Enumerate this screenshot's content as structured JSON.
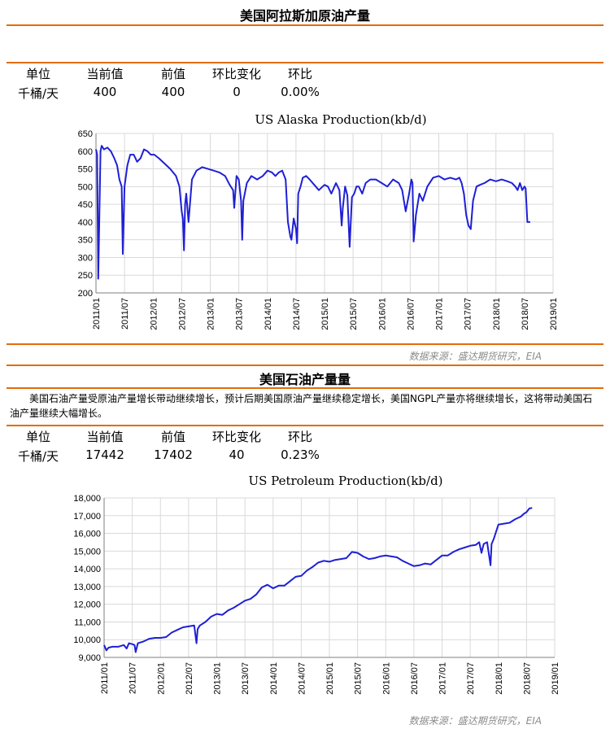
{
  "section1": {
    "title": "美国阿拉斯加原油产量",
    "stats_headers": [
      "单位",
      "当前值",
      "前值",
      "环比变化",
      "环比"
    ],
    "stats_values": [
      "千桶/天",
      "400",
      "400",
      "0",
      "0.00%"
    ],
    "source": "数据来源：盛达期货研究，EIA"
  },
  "section2": {
    "title": "美国石油产量量",
    "description": "美国石油产量受原油产量增长带动继续增长，预计后期美国原油产量继续稳定增长，美国NGPL产量亦将继续增长，这将带动美国石油产量继续大幅增长。",
    "stats_headers": [
      "单位",
      "当前值",
      "前值",
      "环比变化",
      "环比"
    ],
    "stats_values": [
      "千桶/天",
      "17442",
      "17402",
      "40",
      "0.23%"
    ],
    "source": "数据来源：盛达期货研究，EIA"
  },
  "chart_data": [
    {
      "type": "line",
      "title": "US Alaska Production(kb/d)",
      "color": "#1f1fd6",
      "x_ticks": [
        "2011/01",
        "2011/07",
        "2012/01",
        "2012/07",
        "2013/01",
        "2013/07",
        "2014/01",
        "2014/07",
        "2015/01",
        "2015/07",
        "2016/01",
        "2016/07",
        "2017/01",
        "2017/07",
        "2018/01",
        "2018/07",
        "2019/01"
      ],
      "y_ticks": [
        "200",
        "250",
        "300",
        "350",
        "400",
        "450",
        "500",
        "550",
        "600",
        "650"
      ],
      "ylim": [
        200,
        650
      ],
      "xlim": [
        2011.0,
        2019.0
      ],
      "grid": true,
      "series": [
        {
          "x": [
            2011.0,
            2011.02,
            2011.04,
            2011.06,
            2011.08,
            2011.1,
            2011.14,
            2011.2,
            2011.26,
            2011.32,
            2011.37,
            2011.41,
            2011.45,
            2011.47,
            2011.5,
            2011.55,
            2011.6,
            2011.66,
            2011.72,
            2011.78,
            2011.84,
            2011.9,
            2011.96,
            2012.02,
            2012.1,
            2012.2,
            2012.3,
            2012.4,
            2012.46,
            2012.5,
            2012.52,
            2012.54,
            2012.56,
            2012.58,
            2012.62,
            2012.68,
            2012.76,
            2012.86,
            2012.96,
            2013.06,
            2013.16,
            2013.26,
            2013.34,
            2013.4,
            2013.42,
            2013.46,
            2013.5,
            2013.54,
            2013.56,
            2013.58,
            2013.64,
            2013.72,
            2013.82,
            2013.92,
            2014.0,
            2014.08,
            2014.14,
            2014.2,
            2014.26,
            2014.32,
            2014.36,
            2014.4,
            2014.42,
            2014.46,
            2014.5,
            2014.52,
            2014.54,
            2014.58,
            2014.62,
            2014.68,
            2014.74,
            2014.82,
            2014.9,
            2015.0,
            2015.06,
            2015.12,
            2015.2,
            2015.26,
            2015.3,
            2015.32,
            2015.36,
            2015.4,
            2015.44,
            2015.48,
            2015.52,
            2015.56,
            2015.6,
            2015.66,
            2015.72,
            2015.8,
            2015.9,
            2016.0,
            2016.1,
            2016.2,
            2016.3,
            2016.36,
            2016.38,
            2016.42,
            2016.48,
            2016.52,
            2016.54,
            2016.56,
            2016.6,
            2016.66,
            2016.72,
            2016.8,
            2016.9,
            2017.0,
            2017.1,
            2017.2,
            2017.3,
            2017.36,
            2017.4,
            2017.44,
            2017.48,
            2017.52,
            2017.56,
            2017.6,
            2017.66,
            2017.72,
            2017.8,
            2017.9,
            2018.0,
            2018.1,
            2018.2,
            2018.28,
            2018.34,
            2018.38,
            2018.42,
            2018.46,
            2018.5,
            2018.52,
            2018.55,
            2018.6
          ],
          "y": [
            605,
            590,
            240,
            420,
            600,
            615,
            605,
            610,
            600,
            580,
            560,
            520,
            500,
            310,
            500,
            560,
            590,
            590,
            570,
            580,
            605,
            600,
            590,
            590,
            580,
            565,
            550,
            530,
            500,
            430,
            410,
            320,
            450,
            480,
            400,
            520,
            545,
            555,
            550,
            545,
            540,
            530,
            505,
            490,
            440,
            530,
            520,
            460,
            350,
            460,
            510,
            530,
            520,
            530,
            545,
            540,
            530,
            540,
            545,
            520,
            400,
            360,
            350,
            410,
            380,
            340,
            480,
            500,
            525,
            530,
            520,
            505,
            490,
            505,
            500,
            480,
            510,
            490,
            390,
            440,
            500,
            475,
            330,
            470,
            480,
            500,
            500,
            480,
            510,
            520,
            520,
            510,
            500,
            520,
            510,
            490,
            470,
            430,
            480,
            520,
            510,
            345,
            420,
            480,
            460,
            500,
            525,
            530,
            520,
            525,
            520,
            525,
            510,
            480,
            420,
            390,
            380,
            460,
            500,
            505,
            510,
            520,
            515,
            520,
            515,
            510,
            500,
            490,
            510,
            490,
            500,
            495,
            400,
            400
          ]
        }
      ]
    },
    {
      "type": "line",
      "title": "US Petroleum Production(kb/d)",
      "color": "#1f1fd6",
      "x_ticks": [
        "2011/01",
        "2011/07",
        "2012/01",
        "2012/07",
        "2013/01",
        "2013/07",
        "2014/01",
        "2014/07",
        "2015/01",
        "2015/07",
        "2016/01",
        "2016/07",
        "2017/01",
        "2017/07",
        "2018/01",
        "2018/07",
        "2019/01"
      ],
      "y_ticks": [
        "9,000",
        "10,000",
        "11,000",
        "12,000",
        "13,000",
        "14,000",
        "15,000",
        "16,000",
        "17,000",
        "18,000"
      ],
      "ylim": [
        9000,
        18000
      ],
      "xlim": [
        2011.0,
        2019.0
      ],
      "grid": true,
      "series": [
        {
          "x": [
            2011.0,
            2011.04,
            2011.08,
            2011.15,
            2011.25,
            2011.35,
            2011.4,
            2011.44,
            2011.5,
            2011.54,
            2011.56,
            2011.6,
            2011.7,
            2011.8,
            2011.9,
            2012.0,
            2012.1,
            2012.2,
            2012.3,
            2012.4,
            2012.5,
            2012.6,
            2012.64,
            2012.66,
            2012.7,
            2012.8,
            2012.9,
            2013.0,
            2013.1,
            2013.2,
            2013.3,
            2013.4,
            2013.5,
            2013.6,
            2013.7,
            2013.8,
            2013.9,
            2014.0,
            2014.1,
            2014.2,
            2014.3,
            2014.4,
            2014.5,
            2014.6,
            2014.7,
            2014.8,
            2014.9,
            2015.0,
            2015.1,
            2015.2,
            2015.3,
            2015.4,
            2015.5,
            2015.6,
            2015.7,
            2015.8,
            2015.9,
            2016.0,
            2016.1,
            2016.2,
            2016.3,
            2016.4,
            2016.5,
            2016.6,
            2016.7,
            2016.8,
            2016.9,
            2017.0,
            2017.1,
            2017.2,
            2017.3,
            2017.4,
            2017.5,
            2017.6,
            2017.66,
            2017.7,
            2017.74,
            2017.8,
            2017.86,
            2017.88,
            2017.92,
            2018.0,
            2018.1,
            2018.2,
            2018.3,
            2018.4,
            2018.45,
            2018.5,
            2018.55,
            2018.6
          ],
          "y": [
            9700,
            9400,
            9550,
            9600,
            9600,
            9700,
            9500,
            9800,
            9750,
            9700,
            9300,
            9800,
            9900,
            10050,
            10100,
            10100,
            10150,
            10400,
            10550,
            10700,
            10750,
            10800,
            9800,
            10600,
            10800,
            11000,
            11300,
            11450,
            11400,
            11650,
            11800,
            12000,
            12200,
            12300,
            12550,
            12950,
            13100,
            12900,
            13050,
            13050,
            13300,
            13550,
            13600,
            13900,
            14100,
            14350,
            14450,
            14400,
            14500,
            14550,
            14600,
            14950,
            14900,
            14700,
            14550,
            14600,
            14700,
            14750,
            14700,
            14650,
            14450,
            14300,
            14150,
            14200,
            14300,
            14250,
            14500,
            14750,
            14750,
            14950,
            15100,
            15200,
            15300,
            15350,
            15500,
            14900,
            15400,
            15500,
            14200,
            15400,
            15700,
            16500,
            16550,
            16600,
            16800,
            16950,
            17100,
            17200,
            17402,
            17442
          ]
        }
      ]
    }
  ]
}
